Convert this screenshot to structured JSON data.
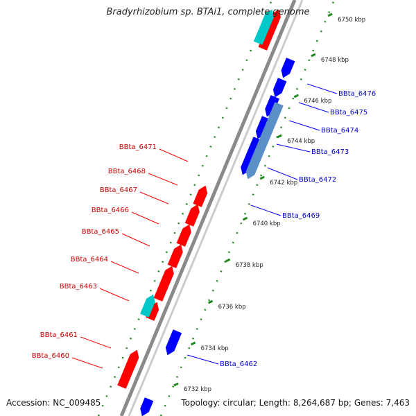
{
  "title": "Bradyrhizobium sp. BTAi1, complete genome",
  "footer": {
    "accession": "Accession: NC_009485",
    "summary": "Topology: circular; Length: 8,264,687 bp; Genes: 7,463"
  },
  "colors": {
    "forward_gene": "#ff0000",
    "reverse_gene": "#0000ff",
    "rna_gene": "#00c8c8",
    "backbone": "#888888",
    "tick": "#228822",
    "forward_label": "#cc0000",
    "reverse_label": "#0000cc"
  },
  "ticks": [
    "6732 kbp",
    "6734 kbp",
    "6736 kbp",
    "6738 kbp",
    "6740 kbp",
    "6742 kbp",
    "6744 kbp",
    "6746 kbp",
    "6748 kbp",
    "6750 kbp"
  ],
  "forward_labels": [
    "BBta_6460",
    "BBta_6461",
    "BBta_6463",
    "BBta_6464",
    "BBta_6465",
    "BBta_6466",
    "BBta_6467",
    "BBta_6468",
    "BBta_6471"
  ],
  "reverse_labels": [
    "BBta_6462",
    "BBta_6469",
    "BBta_6472",
    "BBta_6473",
    "BBta_6474",
    "BBta_6475",
    "BBta_6476"
  ]
}
